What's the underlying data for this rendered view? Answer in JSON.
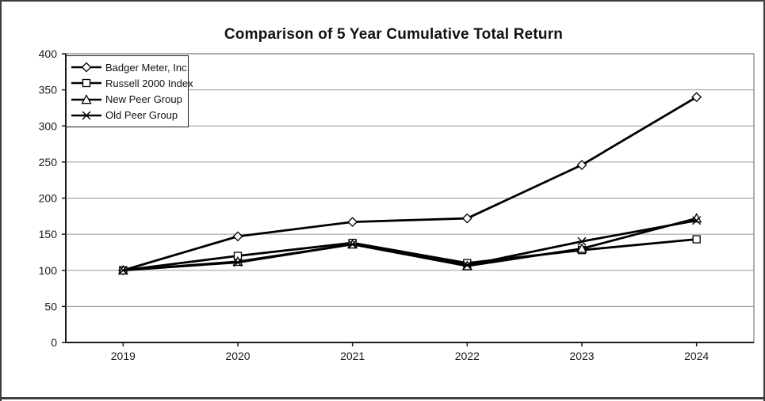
{
  "title": "Comparison of 5 Year Cumulative Total Return",
  "colors": {
    "line": "#000000",
    "marker_fill": "#ffffff",
    "grid": "#9a9a9a",
    "plot_frame": "#7f7f7f",
    "axis": "#1a1a1a",
    "text": "#1a1a1a",
    "outer_border": "#3f3f3f"
  },
  "chart_data": {
    "type": "line",
    "title": "Comparison of 5 Year Cumulative Total Return",
    "categories": [
      "2019",
      "2020",
      "2021",
      "2022",
      "2023",
      "2024"
    ],
    "series": [
      {
        "name": "Badger Meter, Inc.",
        "marker": "diamond",
        "values": [
          100,
          147,
          167,
          172,
          246,
          340
        ]
      },
      {
        "name": "Russell 2000 Index",
        "marker": "square",
        "values": [
          100,
          120,
          138,
          110,
          128,
          143
        ]
      },
      {
        "name": "New Peer Group",
        "marker": "triangle",
        "values": [
          100,
          112,
          136,
          106,
          130,
          172
        ]
      },
      {
        "name": "Old Peer Group",
        "marker": "x",
        "values": [
          100,
          111,
          136,
          107,
          140,
          169
        ]
      }
    ],
    "xlabel": "",
    "ylabel": "",
    "ylim": [
      0,
      400
    ],
    "y_ticks": [
      0,
      50,
      100,
      150,
      200,
      250,
      300,
      350,
      400
    ],
    "grid": "horizontal",
    "legend_position": "top-left-inside",
    "monochrome": true
  }
}
